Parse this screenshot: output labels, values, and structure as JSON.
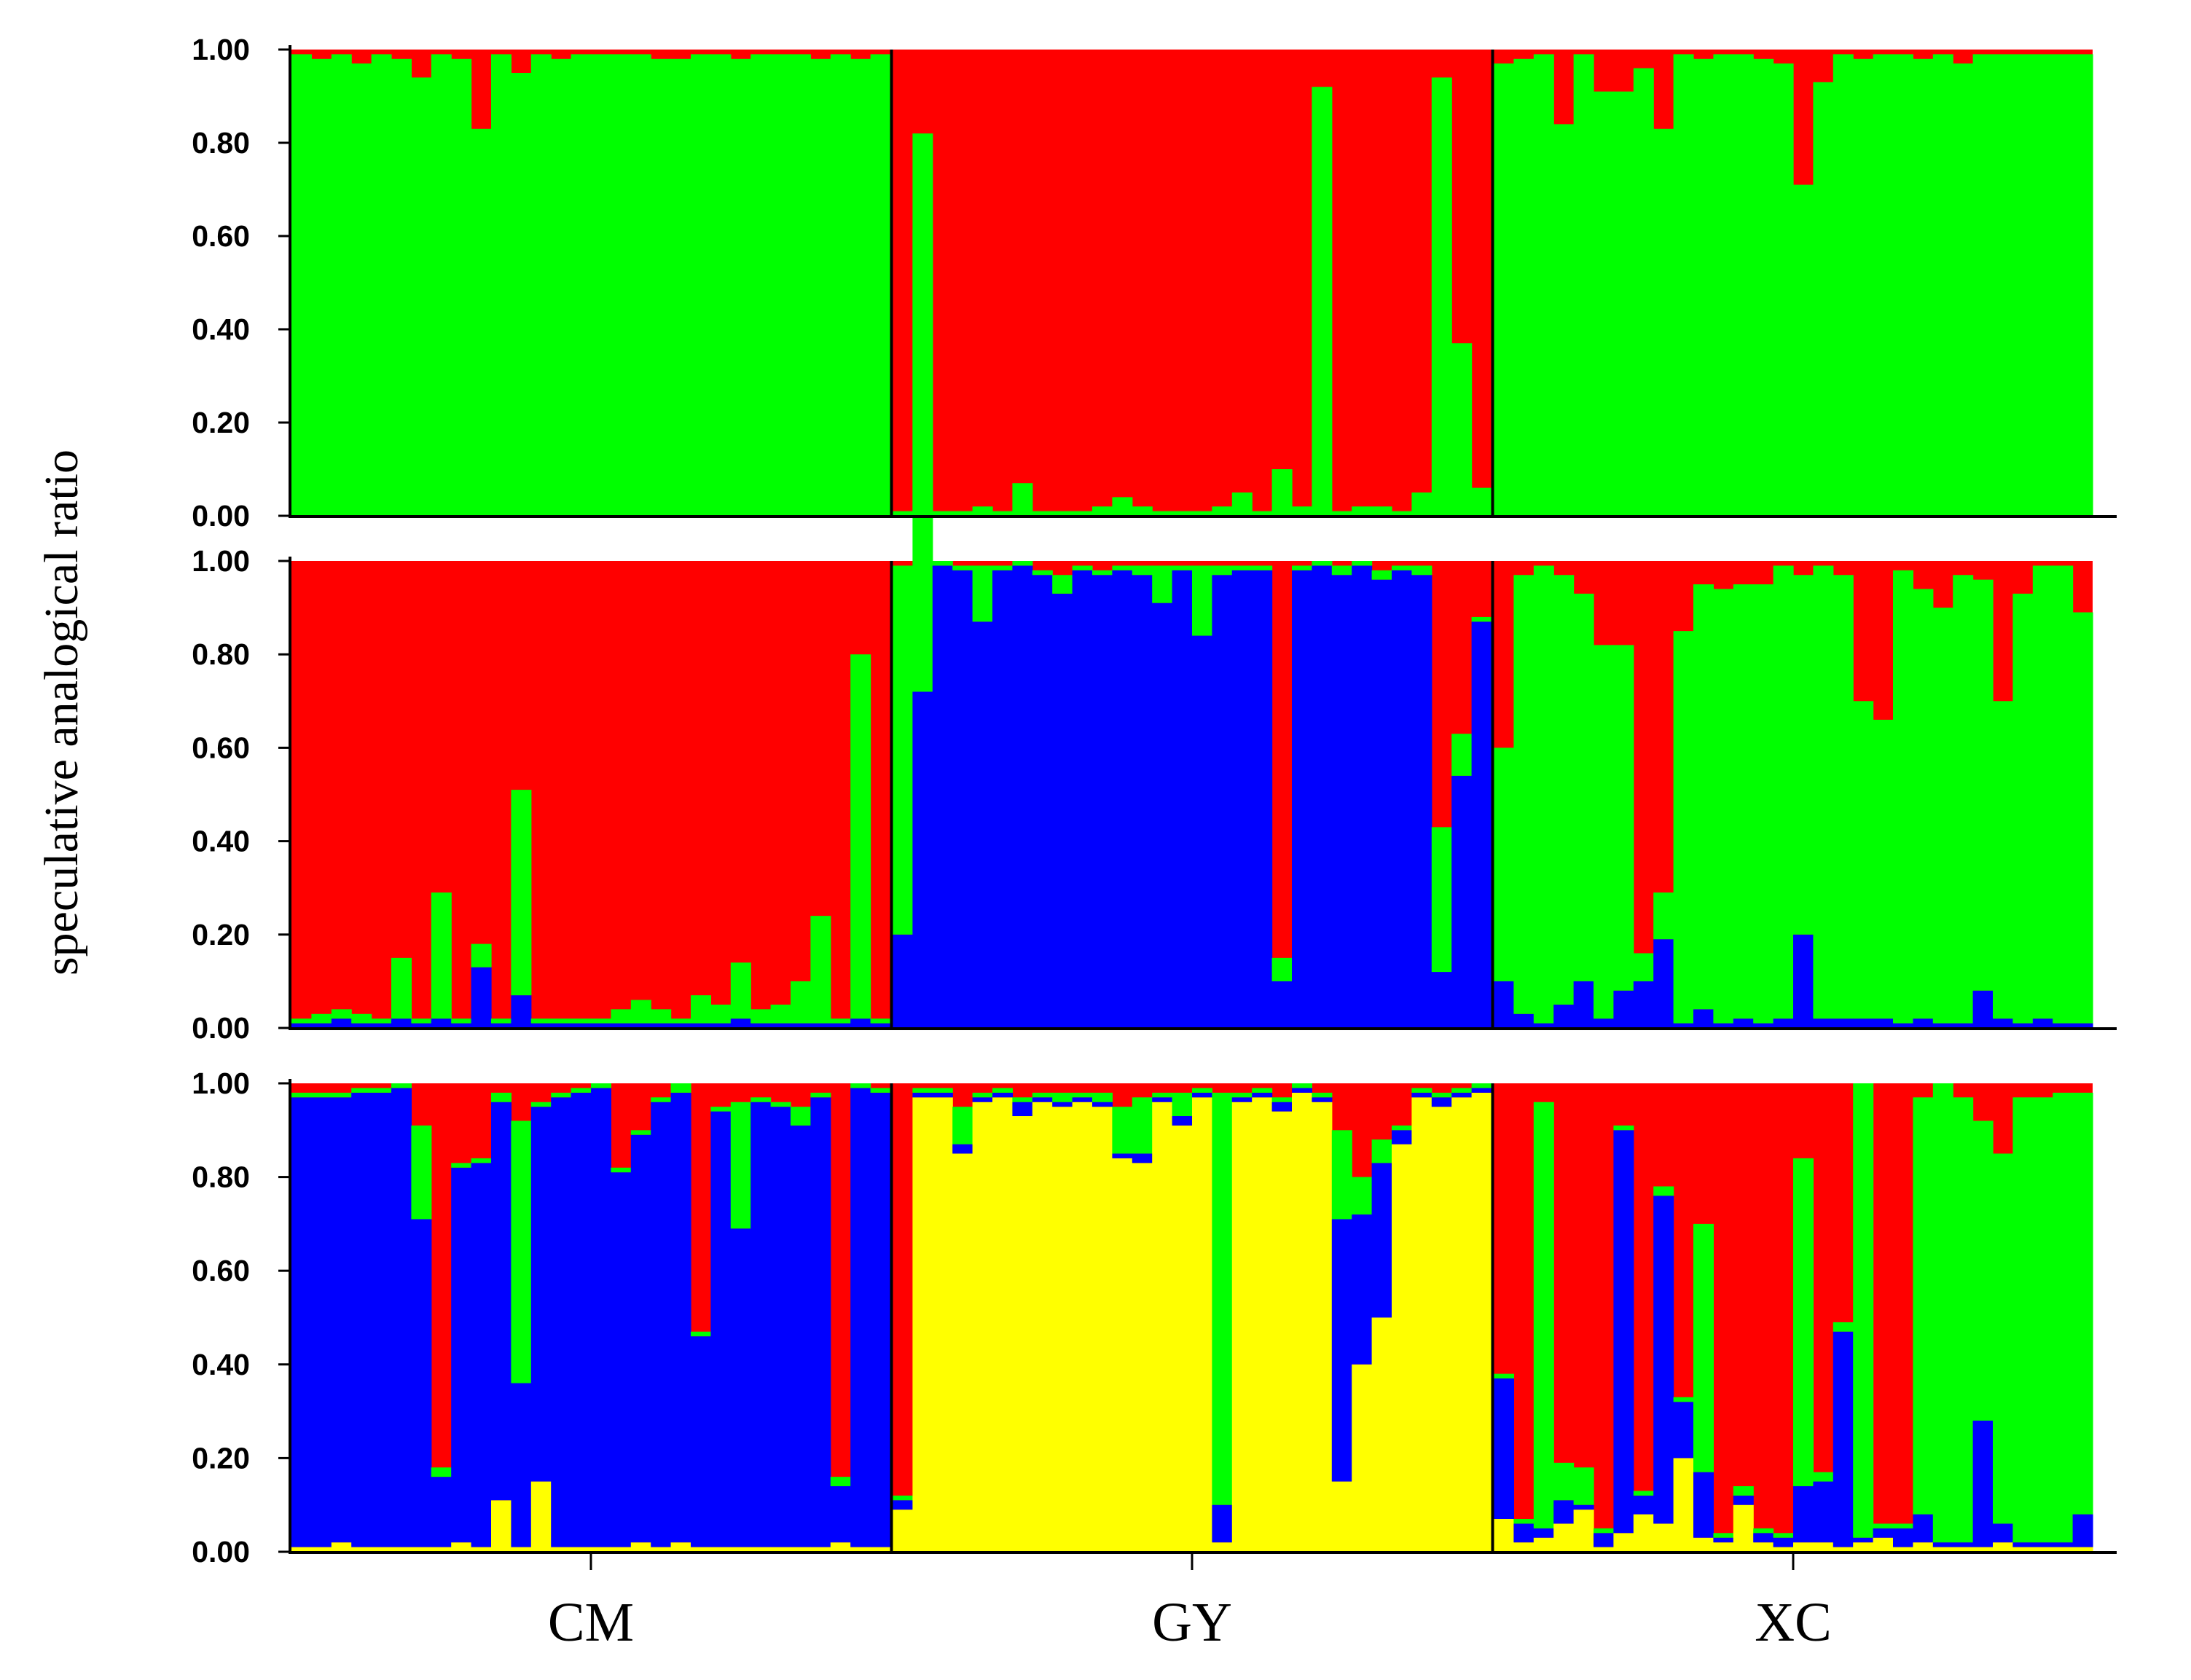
{
  "chart_data": {
    "type": "stacked-bar",
    "ylabel": "speculative analogical ratio",
    "groups": [
      "CM",
      "GY",
      "XC"
    ],
    "y_ticks": [
      "0.00",
      "0.20",
      "0.40",
      "0.60",
      "0.80",
      "1.00"
    ],
    "ylim": [
      0,
      1
    ],
    "n_individuals": [
      30,
      30,
      30
    ],
    "colors": {
      "red": "#ff0000",
      "green": "#00ff00",
      "blue": "#0000ff",
      "yellow": "#ffff00"
    },
    "panels": [
      {
        "K": 2,
        "components": [
          "green",
          "red"
        ],
        "bottom_component_values": [
          [
            0.99,
            0.98,
            0.99,
            0.97,
            0.99,
            0.98,
            0.94,
            0.99,
            0.98,
            0.83,
            0.99,
            0.95,
            0.99,
            0.98,
            0.99,
            0.99,
            0.99,
            0.99,
            0.98,
            0.98,
            0.99,
            0.99,
            0.98,
            0.99,
            0.99,
            0.99,
            0.98,
            0.99,
            0.98,
            0.99
          ],
          [
            0.01,
            0.82,
            0.01,
            0.01,
            0.02,
            0.01,
            0.07,
            0.01,
            0.01,
            0.01,
            0.02,
            0.04,
            0.02,
            0.01,
            0.01,
            0.01,
            0.02,
            0.05,
            0.01,
            0.1,
            0.02,
            0.92,
            0.01,
            0.02,
            0.02,
            0.01,
            0.05,
            0.94,
            0.37,
            0.06
          ],
          [
            0.97,
            0.98,
            0.99,
            0.84,
            0.99,
            0.91,
            0.91,
            0.96,
            0.83,
            0.99,
            0.98,
            0.99,
            0.99,
            0.98,
            0.97,
            0.71,
            0.93,
            0.99,
            0.98,
            0.99,
            0.99,
            0.98,
            0.99,
            0.97,
            0.99,
            0.99,
            0.99,
            0.99,
            0.99,
            0.99
          ]
        ]
      },
      {
        "K": 3,
        "components": [
          "blue",
          "green",
          "red"
        ],
        "stack_values": [
          [
            [
              0.01,
              0.01
            ],
            [
              0.01,
              0.02
            ],
            [
              0.02,
              0.02
            ],
            [
              0.01,
              0.02
            ],
            [
              0.01,
              0.01
            ],
            [
              0.02,
              0.13
            ],
            [
              0.01,
              0.01
            ],
            [
              0.02,
              0.27
            ],
            [
              0.01,
              0.01
            ],
            [
              0.13,
              0.05
            ],
            [
              0.01,
              0.01
            ],
            [
              0.07,
              0.44
            ],
            [
              0.01,
              0.01
            ],
            [
              0.01,
              0.01
            ],
            [
              0.01,
              0.01
            ],
            [
              0.01,
              0.01
            ],
            [
              0.01,
              0.03
            ],
            [
              0.01,
              0.05
            ],
            [
              0.01,
              0.03
            ],
            [
              0.01,
              0.01
            ],
            [
              0.01,
              0.06
            ],
            [
              0.01,
              0.04
            ],
            [
              0.02,
              0.12
            ],
            [
              0.01,
              0.03
            ],
            [
              0.01,
              0.04
            ],
            [
              0.01,
              0.09
            ],
            [
              0.01,
              0.23
            ],
            [
              0.01,
              0.01
            ],
            [
              0.02,
              0.78
            ],
            [
              0.01,
              0.01
            ]
          ],
          [
            [
              0.2,
              0.79
            ],
            [
              0.72,
              0.99
            ],
            [
              0.99,
              0.01
            ],
            [
              0.98,
              0.01
            ],
            [
              0.87,
              0.12
            ],
            [
              0.98,
              0.01
            ],
            [
              0.99,
              0.01
            ],
            [
              0.97,
              0.01
            ],
            [
              0.93,
              0.04
            ],
            [
              0.98,
              0.01
            ],
            [
              0.97,
              0.01
            ],
            [
              0.98,
              0.01
            ],
            [
              0.97,
              0.02
            ],
            [
              0.91,
              0.08
            ],
            [
              0.98,
              0.01
            ],
            [
              0.84,
              0.15
            ],
            [
              0.97,
              0.02
            ],
            [
              0.98,
              0.01
            ],
            [
              0.98,
              0.01
            ],
            [
              0.1,
              0.05
            ],
            [
              0.98,
              0.01
            ],
            [
              0.99,
              0.01
            ],
            [
              0.97,
              0.02
            ],
            [
              0.99,
              0.01
            ],
            [
              0.96,
              0.02
            ],
            [
              0.98,
              0.01
            ],
            [
              0.97,
              0.02
            ],
            [
              0.12,
              0.31
            ],
            [
              0.54,
              0.09
            ],
            [
              0.87,
              0.01
            ]
          ],
          [
            [
              0.1,
              0.5
            ],
            [
              0.03,
              0.94
            ],
            [
              0.01,
              0.98
            ],
            [
              0.05,
              0.92
            ],
            [
              0.1,
              0.83
            ],
            [
              0.02,
              0.8
            ],
            [
              0.08,
              0.74
            ],
            [
              0.1,
              0.06
            ],
            [
              0.19,
              0.1
            ],
            [
              0.01,
              0.84
            ],
            [
              0.04,
              0.91
            ],
            [
              0.01,
              0.93
            ],
            [
              0.02,
              0.93
            ],
            [
              0.01,
              0.94
            ],
            [
              0.02,
              0.97
            ],
            [
              0.2,
              0.77
            ],
            [
              0.02,
              0.97
            ],
            [
              0.02,
              0.95
            ],
            [
              0.02,
              0.68
            ],
            [
              0.02,
              0.64
            ],
            [
              0.01,
              0.97
            ],
            [
              0.02,
              0.92
            ],
            [
              0.01,
              0.89
            ],
            [
              0.01,
              0.96
            ],
            [
              0.08,
              0.88
            ],
            [
              0.02,
              0.68
            ],
            [
              0.01,
              0.92
            ],
            [
              0.02,
              0.97
            ],
            [
              0.01,
              0.98
            ],
            [
              0.01,
              0.88
            ]
          ]
        ]
      },
      {
        "K": 4,
        "components": [
          "yellow",
          "blue",
          "green",
          "red"
        ],
        "stack_values": [
          [
            [
              0.01,
              0.96,
              0.01
            ],
            [
              0.01,
              0.96,
              0.01
            ],
            [
              0.02,
              0.95,
              0.01
            ],
            [
              0.01,
              0.97,
              0.01
            ],
            [
              0.01,
              0.97,
              0.01
            ],
            [
              0.01,
              0.98,
              0.01
            ],
            [
              0.01,
              0.7,
              0.2
            ],
            [
              0.01,
              0.15,
              0.02
            ],
            [
              0.02,
              0.8,
              0.01
            ],
            [
              0.01,
              0.82,
              0.01
            ],
            [
              0.11,
              0.85,
              0.02
            ],
            [
              0.01,
              0.35,
              0.56
            ],
            [
              0.15,
              0.8,
              0.01
            ],
            [
              0.01,
              0.96,
              0.01
            ],
            [
              0.01,
              0.97,
              0.01
            ],
            [
              0.01,
              0.98,
              0.01
            ],
            [
              0.01,
              0.8,
              0.01
            ],
            [
              0.02,
              0.87,
              0.01
            ],
            [
              0.01,
              0.95,
              0.01
            ],
            [
              0.02,
              0.96,
              0.02
            ],
            [
              0.01,
              0.45,
              0.01
            ],
            [
              0.01,
              0.93,
              0.01
            ],
            [
              0.01,
              0.68,
              0.27
            ],
            [
              0.01,
              0.95,
              0.01
            ],
            [
              0.01,
              0.94,
              0.01
            ],
            [
              0.01,
              0.9,
              0.04
            ],
            [
              0.01,
              0.96,
              0.01
            ],
            [
              0.02,
              0.12,
              0.02
            ],
            [
              0.01,
              0.98,
              0.01
            ],
            [
              0.01,
              0.97,
              0.01
            ]
          ],
          [
            [
              0.09,
              0.02,
              0.01
            ],
            [
              0.97,
              0.01,
              0.01
            ],
            [
              0.97,
              0.01,
              0.01
            ],
            [
              0.85,
              0.02,
              0.08
            ],
            [
              0.96,
              0.01,
              0.01
            ],
            [
              0.97,
              0.01,
              0.01
            ],
            [
              0.93,
              0.03,
              0.01
            ],
            [
              0.96,
              0.01,
              0.01
            ],
            [
              0.95,
              0.01,
              0.02
            ],
            [
              0.96,
              0.01,
              0.01
            ],
            [
              0.95,
              0.01,
              0.02
            ],
            [
              0.84,
              0.01,
              0.1
            ],
            [
              0.83,
              0.02,
              0.12
            ],
            [
              0.96,
              0.01,
              0.01
            ],
            [
              0.91,
              0.02,
              0.05
            ],
            [
              0.97,
              0.01,
              0.01
            ],
            [
              0.02,
              0.08,
              0.88
            ],
            [
              0.96,
              0.01,
              0.01
            ],
            [
              0.97,
              0.01,
              0.01
            ],
            [
              0.94,
              0.02,
              0.01
            ],
            [
              0.98,
              0.01,
              0.01
            ],
            [
              0.96,
              0.01,
              0.01
            ],
            [
              0.15,
              0.56,
              0.19
            ],
            [
              0.4,
              0.32,
              0.08
            ],
            [
              0.5,
              0.33,
              0.05
            ],
            [
              0.87,
              0.03,
              0.01
            ],
            [
              0.97,
              0.01,
              0.01
            ],
            [
              0.95,
              0.02,
              0.01
            ],
            [
              0.97,
              0.01,
              0.01
            ],
            [
              0.98,
              0.01,
              0.01
            ]
          ],
          [
            [
              0.07,
              0.3,
              0.01
            ],
            [
              0.02,
              0.04,
              0.01
            ],
            [
              0.03,
              0.02,
              0.91
            ],
            [
              0.06,
              0.05,
              0.08
            ],
            [
              0.09,
              0.01,
              0.08
            ],
            [
              0.01,
              0.03,
              0.01
            ],
            [
              0.04,
              0.86,
              0.01
            ],
            [
              0.08,
              0.04,
              0.01
            ],
            [
              0.06,
              0.7,
              0.02
            ],
            [
              0.2,
              0.12,
              0.01
            ],
            [
              0.03,
              0.14,
              0.53
            ],
            [
              0.02,
              0.01,
              0.01
            ],
            [
              0.1,
              0.02,
              0.02
            ],
            [
              0.02,
              0.02,
              0.01
            ],
            [
              0.01,
              0.02,
              0.01
            ],
            [
              0.02,
              0.12,
              0.7
            ],
            [
              0.02,
              0.13,
              0.02
            ],
            [
              0.01,
              0.46,
              0.02
            ],
            [
              0.02,
              0.01,
              0.97
            ],
            [
              0.03,
              0.02,
              0.01
            ],
            [
              0.01,
              0.04,
              0.01
            ],
            [
              0.02,
              0.06,
              0.89
            ],
            [
              0.01,
              0.01,
              0.98
            ],
            [
              0.01,
              0.01,
              0.95
            ],
            [
              0.01,
              0.27,
              0.64
            ],
            [
              0.02,
              0.04,
              0.79
            ],
            [
              0.01,
              0.01,
              0.95
            ],
            [
              0.01,
              0.01,
              0.95
            ],
            [
              0.01,
              0.01,
              0.96
            ],
            [
              0.01,
              0.07,
              0.9
            ]
          ]
        ]
      }
    ]
  }
}
